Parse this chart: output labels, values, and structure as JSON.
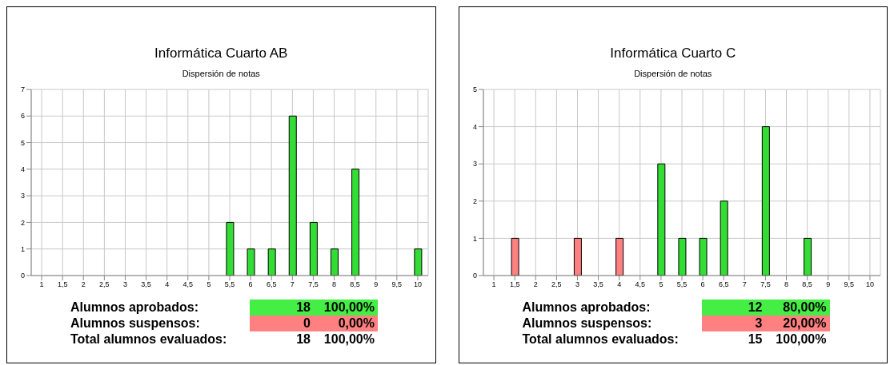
{
  "chart_data": [
    {
      "type": "bar",
      "title": "Informática Cuarto AB",
      "subtitle": "Dispersión de notas",
      "categories": [
        "1",
        "1,5",
        "2",
        "2,5",
        "3",
        "3,5",
        "4",
        "4,5",
        "5",
        "5,5",
        "6",
        "6,5",
        "7",
        "7,5",
        "8",
        "8,5",
        "9",
        "9,5",
        "10"
      ],
      "values": [
        0,
        0,
        0,
        0,
        0,
        0,
        0,
        0,
        0,
        2,
        1,
        1,
        6,
        2,
        1,
        4,
        0,
        0,
        1
      ],
      "colors": [
        "#33dd33",
        "#33dd33",
        "#33dd33",
        "#33dd33",
        "#33dd33",
        "#33dd33",
        "#33dd33",
        "#33dd33",
        "#33dd33",
        "#33dd33",
        "#33dd33",
        "#33dd33",
        "#33dd33",
        "#33dd33",
        "#33dd33",
        "#33dd33",
        "#33dd33",
        "#33dd33",
        "#33dd33"
      ],
      "ylim": [
        0,
        7
      ],
      "yticks": [
        0,
        1,
        2,
        3,
        4,
        5,
        6,
        7
      ],
      "grid": true,
      "annotations": [
        "Alumnos aprobados:",
        "18",
        "100,00%",
        "Alumnos suspensos:",
        "0",
        "0,00%",
        "Total alumnos evaluados:",
        "18",
        "100,00%"
      ]
    },
    {
      "type": "bar",
      "title": "Informática Cuarto C",
      "subtitle": "Dispersión de notas",
      "categories": [
        "1",
        "1,5",
        "2",
        "2,5",
        "3",
        "3,5",
        "4",
        "4,5",
        "5",
        "5,5",
        "6",
        "6,5",
        "7",
        "7,5",
        "8",
        "8,5",
        "9",
        "9,5",
        "10"
      ],
      "values": [
        0,
        1,
        0,
        0,
        1,
        0,
        1,
        0,
        3,
        1,
        1,
        2,
        0,
        4,
        0,
        1,
        0,
        0,
        0
      ],
      "colors": [
        "#33dd33",
        "#ff8080",
        "#33dd33",
        "#33dd33",
        "#ff8080",
        "#33dd33",
        "#ff8080",
        "#33dd33",
        "#33dd33",
        "#33dd33",
        "#33dd33",
        "#33dd33",
        "#33dd33",
        "#33dd33",
        "#33dd33",
        "#33dd33",
        "#33dd33",
        "#33dd33",
        "#33dd33"
      ],
      "ylim": [
        0,
        5
      ],
      "yticks": [
        0,
        1,
        2,
        3,
        4,
        5
      ],
      "grid": true,
      "annotations": [
        "Alumnos aprobados:",
        "12",
        "80,00%",
        "Alumnos suspensos:",
        "3",
        "20,00%",
        "Total alumnos evaluados:",
        "15",
        "100,00%"
      ]
    }
  ]
}
